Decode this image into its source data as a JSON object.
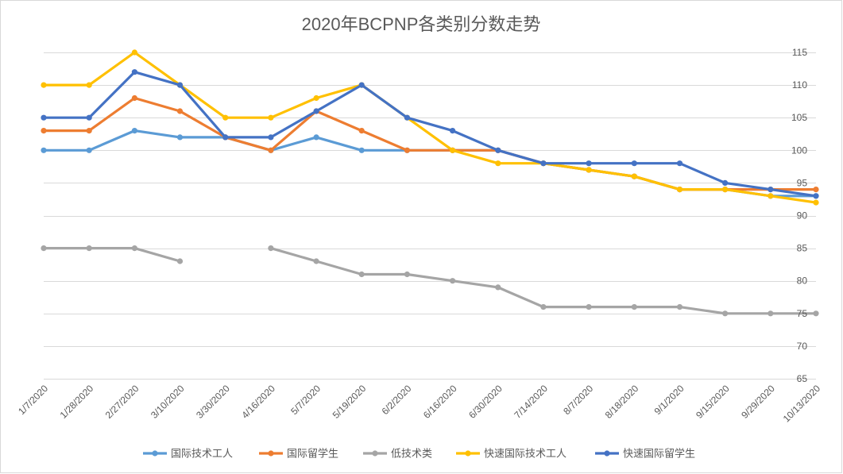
{
  "chart_data": {
    "type": "line",
    "title": "2020年BCPNP各类别分数走势",
    "categories": [
      "1/7/2020",
      "1/28/2020",
      "2/27/2020",
      "3/10/2020",
      "3/30/2020",
      "4/16/2020",
      "5/7/2020",
      "5/19/2020",
      "6/2/2020",
      "6/16/2020",
      "6/30/2020",
      "7/14/2020",
      "8/7/2020",
      "8/18/2020",
      "9/1/2020",
      "9/15/2020",
      "9/29/2020",
      "10/13/2020"
    ],
    "ylim": [
      65,
      115
    ],
    "y_ticks": [
      65,
      70,
      75,
      80,
      85,
      90,
      95,
      100,
      105,
      110,
      115
    ],
    "y_axis_position": "right",
    "grid": true,
    "legend": "bottom",
    "series": [
      {
        "name": "国际技术工人",
        "color": "#5B9BD5",
        "values": [
          100,
          100,
          103,
          102,
          102,
          100,
          102,
          100,
          100,
          100,
          100,
          98,
          97,
          96,
          94,
          94,
          93,
          93
        ]
      },
      {
        "name": "国际留学生",
        "color": "#ED7D31",
        "values": [
          103,
          103,
          108,
          106,
          102,
          100,
          106,
          103,
          100,
          100,
          100,
          98,
          97,
          96,
          94,
          94,
          94,
          94
        ]
      },
      {
        "name": "低技术类",
        "color": "#A5A5A5",
        "values": [
          85,
          85,
          85,
          83,
          null,
          85,
          83,
          81,
          81,
          80,
          79,
          76,
          76,
          76,
          76,
          75,
          75,
          75
        ]
      },
      {
        "name": "快速国际技术工人",
        "color": "#FFC000",
        "values": [
          110,
          110,
          115,
          110,
          105,
          105,
          108,
          110,
          105,
          100,
          98,
          98,
          97,
          96,
          94,
          94,
          93,
          92
        ]
      },
      {
        "name": "快速国际留学生",
        "color": "#4472C4",
        "values": [
          105,
          105,
          112,
          110,
          102,
          102,
          106,
          110,
          105,
          103,
          100,
          98,
          98,
          98,
          98,
          95,
          94,
          93
        ]
      }
    ]
  }
}
